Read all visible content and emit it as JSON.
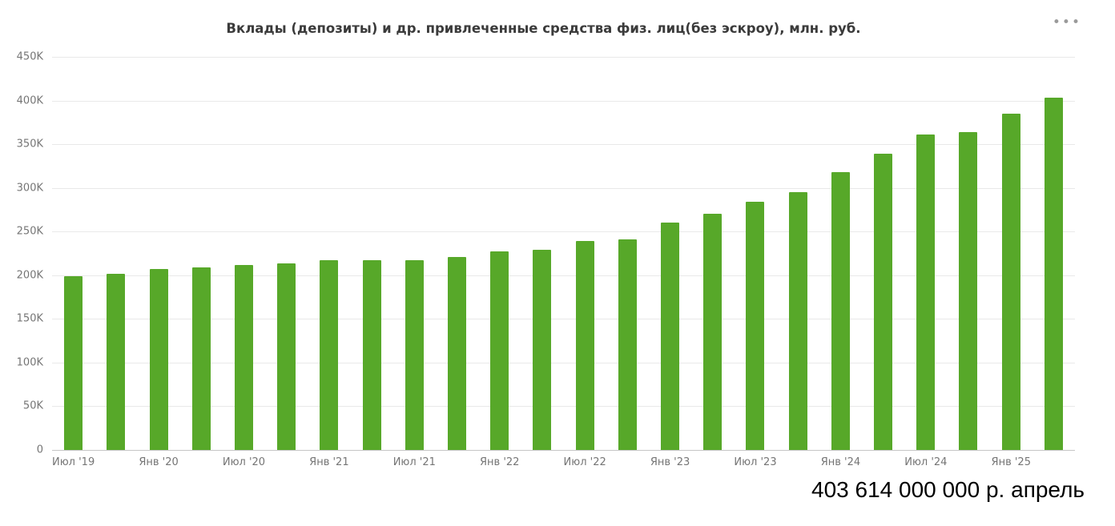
{
  "chart": {
    "title": "Вклады (депозиты) и др. привлеченные средства физ. лиц(без эскроу), млн. руб.",
    "menu_icon": "•••"
  },
  "annotation": {
    "value_label": "403 614 000 000 р. апрель"
  },
  "chart_data": {
    "type": "bar",
    "title": "Вклады (депозиты) и др. привлеченные средства физ. лиц(без эскроу), млн. руб.",
    "ylabel": "",
    "xlabel": "",
    "ylim": [
      0,
      450000
    ],
    "y_ticks": [
      "450K",
      "400K",
      "350K",
      "300K",
      "250K",
      "200K",
      "150K",
      "100K",
      "50K",
      "0"
    ],
    "grid": true,
    "legend": false,
    "bar_color": "#57a829",
    "tick_every": 2,
    "tick_labels": [
      "Июл '19",
      "Янв '20",
      "Июл '20",
      "Янв '21",
      "Июл '21",
      "Янв '22",
      "Июл '22",
      "Янв '23",
      "Июл '23",
      "Янв '24",
      "Июл '24",
      "Янв '25"
    ],
    "values": [
      199000,
      202000,
      207000,
      209000,
      212000,
      214000,
      217000,
      217000,
      217000,
      221000,
      227000,
      229000,
      239000,
      241000,
      260000,
      270000,
      284000,
      295000,
      318000,
      339000,
      361000,
      364000,
      385000,
      403614
    ],
    "last_point_label": "403 614 000 000 р. апрель"
  }
}
